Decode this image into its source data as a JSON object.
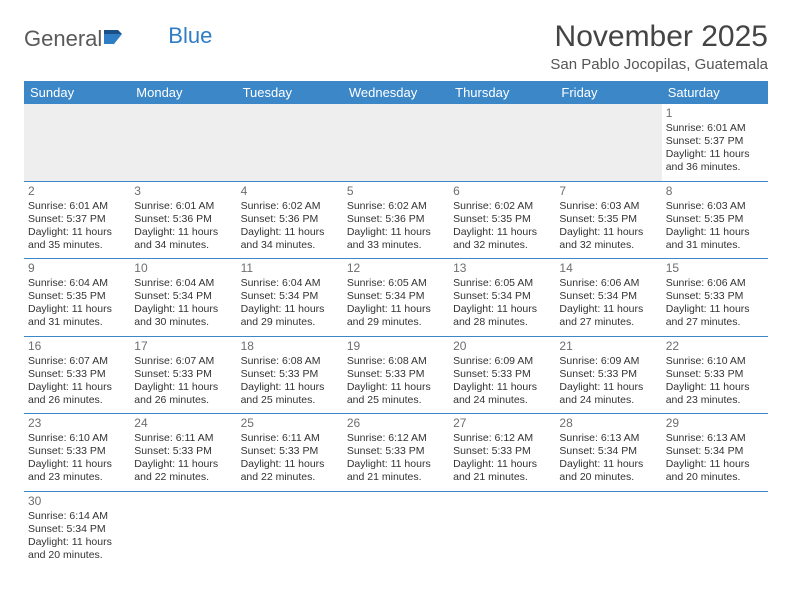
{
  "brand": {
    "part1": "General",
    "part2": "Blue"
  },
  "title": "November 2025",
  "subtitle": "San Pablo Jocopilas, Guatemala",
  "colors": {
    "header_bg": "#3b87c8",
    "header_text": "#ffffff",
    "rule": "#3b87c8",
    "blank_bg": "#eeeeee",
    "daynum": "#6e6e6e",
    "text": "#333333"
  },
  "weekdays": [
    "Sunday",
    "Monday",
    "Tuesday",
    "Wednesday",
    "Thursday",
    "Friday",
    "Saturday"
  ],
  "weeks": [
    [
      null,
      null,
      null,
      null,
      null,
      null,
      {
        "n": "1",
        "sunrise": "6:01 AM",
        "sunset": "5:37 PM",
        "daylight": "11 hours and 36 minutes."
      }
    ],
    [
      {
        "n": "2",
        "sunrise": "6:01 AM",
        "sunset": "5:37 PM",
        "daylight": "11 hours and 35 minutes."
      },
      {
        "n": "3",
        "sunrise": "6:01 AM",
        "sunset": "5:36 PM",
        "daylight": "11 hours and 34 minutes."
      },
      {
        "n": "4",
        "sunrise": "6:02 AM",
        "sunset": "5:36 PM",
        "daylight": "11 hours and 34 minutes."
      },
      {
        "n": "5",
        "sunrise": "6:02 AM",
        "sunset": "5:36 PM",
        "daylight": "11 hours and 33 minutes."
      },
      {
        "n": "6",
        "sunrise": "6:02 AM",
        "sunset": "5:35 PM",
        "daylight": "11 hours and 32 minutes."
      },
      {
        "n": "7",
        "sunrise": "6:03 AM",
        "sunset": "5:35 PM",
        "daylight": "11 hours and 32 minutes."
      },
      {
        "n": "8",
        "sunrise": "6:03 AM",
        "sunset": "5:35 PM",
        "daylight": "11 hours and 31 minutes."
      }
    ],
    [
      {
        "n": "9",
        "sunrise": "6:04 AM",
        "sunset": "5:35 PM",
        "daylight": "11 hours and 31 minutes."
      },
      {
        "n": "10",
        "sunrise": "6:04 AM",
        "sunset": "5:34 PM",
        "daylight": "11 hours and 30 minutes."
      },
      {
        "n": "11",
        "sunrise": "6:04 AM",
        "sunset": "5:34 PM",
        "daylight": "11 hours and 29 minutes."
      },
      {
        "n": "12",
        "sunrise": "6:05 AM",
        "sunset": "5:34 PM",
        "daylight": "11 hours and 29 minutes."
      },
      {
        "n": "13",
        "sunrise": "6:05 AM",
        "sunset": "5:34 PM",
        "daylight": "11 hours and 28 minutes."
      },
      {
        "n": "14",
        "sunrise": "6:06 AM",
        "sunset": "5:34 PM",
        "daylight": "11 hours and 27 minutes."
      },
      {
        "n": "15",
        "sunrise": "6:06 AM",
        "sunset": "5:33 PM",
        "daylight": "11 hours and 27 minutes."
      }
    ],
    [
      {
        "n": "16",
        "sunrise": "6:07 AM",
        "sunset": "5:33 PM",
        "daylight": "11 hours and 26 minutes."
      },
      {
        "n": "17",
        "sunrise": "6:07 AM",
        "sunset": "5:33 PM",
        "daylight": "11 hours and 26 minutes."
      },
      {
        "n": "18",
        "sunrise": "6:08 AM",
        "sunset": "5:33 PM",
        "daylight": "11 hours and 25 minutes."
      },
      {
        "n": "19",
        "sunrise": "6:08 AM",
        "sunset": "5:33 PM",
        "daylight": "11 hours and 25 minutes."
      },
      {
        "n": "20",
        "sunrise": "6:09 AM",
        "sunset": "5:33 PM",
        "daylight": "11 hours and 24 minutes."
      },
      {
        "n": "21",
        "sunrise": "6:09 AM",
        "sunset": "5:33 PM",
        "daylight": "11 hours and 24 minutes."
      },
      {
        "n": "22",
        "sunrise": "6:10 AM",
        "sunset": "5:33 PM",
        "daylight": "11 hours and 23 minutes."
      }
    ],
    [
      {
        "n": "23",
        "sunrise": "6:10 AM",
        "sunset": "5:33 PM",
        "daylight": "11 hours and 23 minutes."
      },
      {
        "n": "24",
        "sunrise": "6:11 AM",
        "sunset": "5:33 PM",
        "daylight": "11 hours and 22 minutes."
      },
      {
        "n": "25",
        "sunrise": "6:11 AM",
        "sunset": "5:33 PM",
        "daylight": "11 hours and 22 minutes."
      },
      {
        "n": "26",
        "sunrise": "6:12 AM",
        "sunset": "5:33 PM",
        "daylight": "11 hours and 21 minutes."
      },
      {
        "n": "27",
        "sunrise": "6:12 AM",
        "sunset": "5:33 PM",
        "daylight": "11 hours and 21 minutes."
      },
      {
        "n": "28",
        "sunrise": "6:13 AM",
        "sunset": "5:34 PM",
        "daylight": "11 hours and 20 minutes."
      },
      {
        "n": "29",
        "sunrise": "6:13 AM",
        "sunset": "5:34 PM",
        "daylight": "11 hours and 20 minutes."
      }
    ],
    [
      {
        "n": "30",
        "sunrise": "6:14 AM",
        "sunset": "5:34 PM",
        "daylight": "11 hours and 20 minutes."
      },
      null,
      null,
      null,
      null,
      null,
      null
    ]
  ],
  "labels": {
    "sunrise": "Sunrise:",
    "sunset": "Sunset:",
    "daylight": "Daylight:"
  }
}
